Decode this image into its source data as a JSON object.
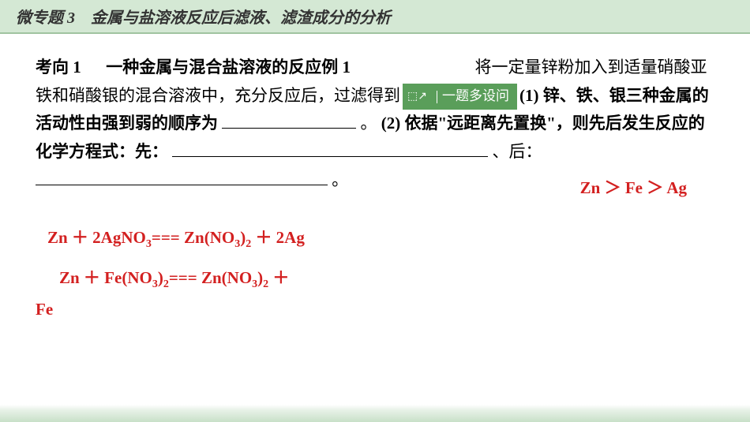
{
  "header": {
    "title": "微专题 3　金属与盐溶液反应后滤液、滤渣成分的分析"
  },
  "content": {
    "direction_label": "考向 1",
    "direction_text": "一种金属与混合盐溶液的反应",
    "example_label": "例  1",
    "body_text_1": "将一定量锌粉加入到适量硝酸亚铁和硝酸银的混合溶液中，充分反应后，过滤得到",
    "tag_text": "一题多设问",
    "body_text_2": "(1) 锌、铁、银三种金属的活动性由强到弱的顺序为",
    "body_text_3": "。",
    "body_text_4": "(2) 依据\"远距离先置换\"，则先后发生反应的化学方程式：先：",
    "body_text_5": "、后：",
    "body_text_6": "。"
  },
  "answers": {
    "activity_order": "Zn ＞ Fe ＞ Ag",
    "equation_1_prefix": "Zn ＋ 2AgNO",
    "equation_1_mid": "=== Zn(NO",
    "equation_1_suffix": " ＋ 2Ag",
    "equation_2_prefix": "Zn ＋ Fe(NO",
    "equation_2_mid": "=== Zn(NO",
    "equation_2_suffix": " ＋",
    "equation_2_end": "Fe",
    "sub_3": "3",
    "sub_2": "2",
    "sub_32": "3"
  },
  "colors": {
    "header_bg": "#d4e8d4",
    "answer_color": "#d32020",
    "tag_bg": "#5a9e5a"
  }
}
